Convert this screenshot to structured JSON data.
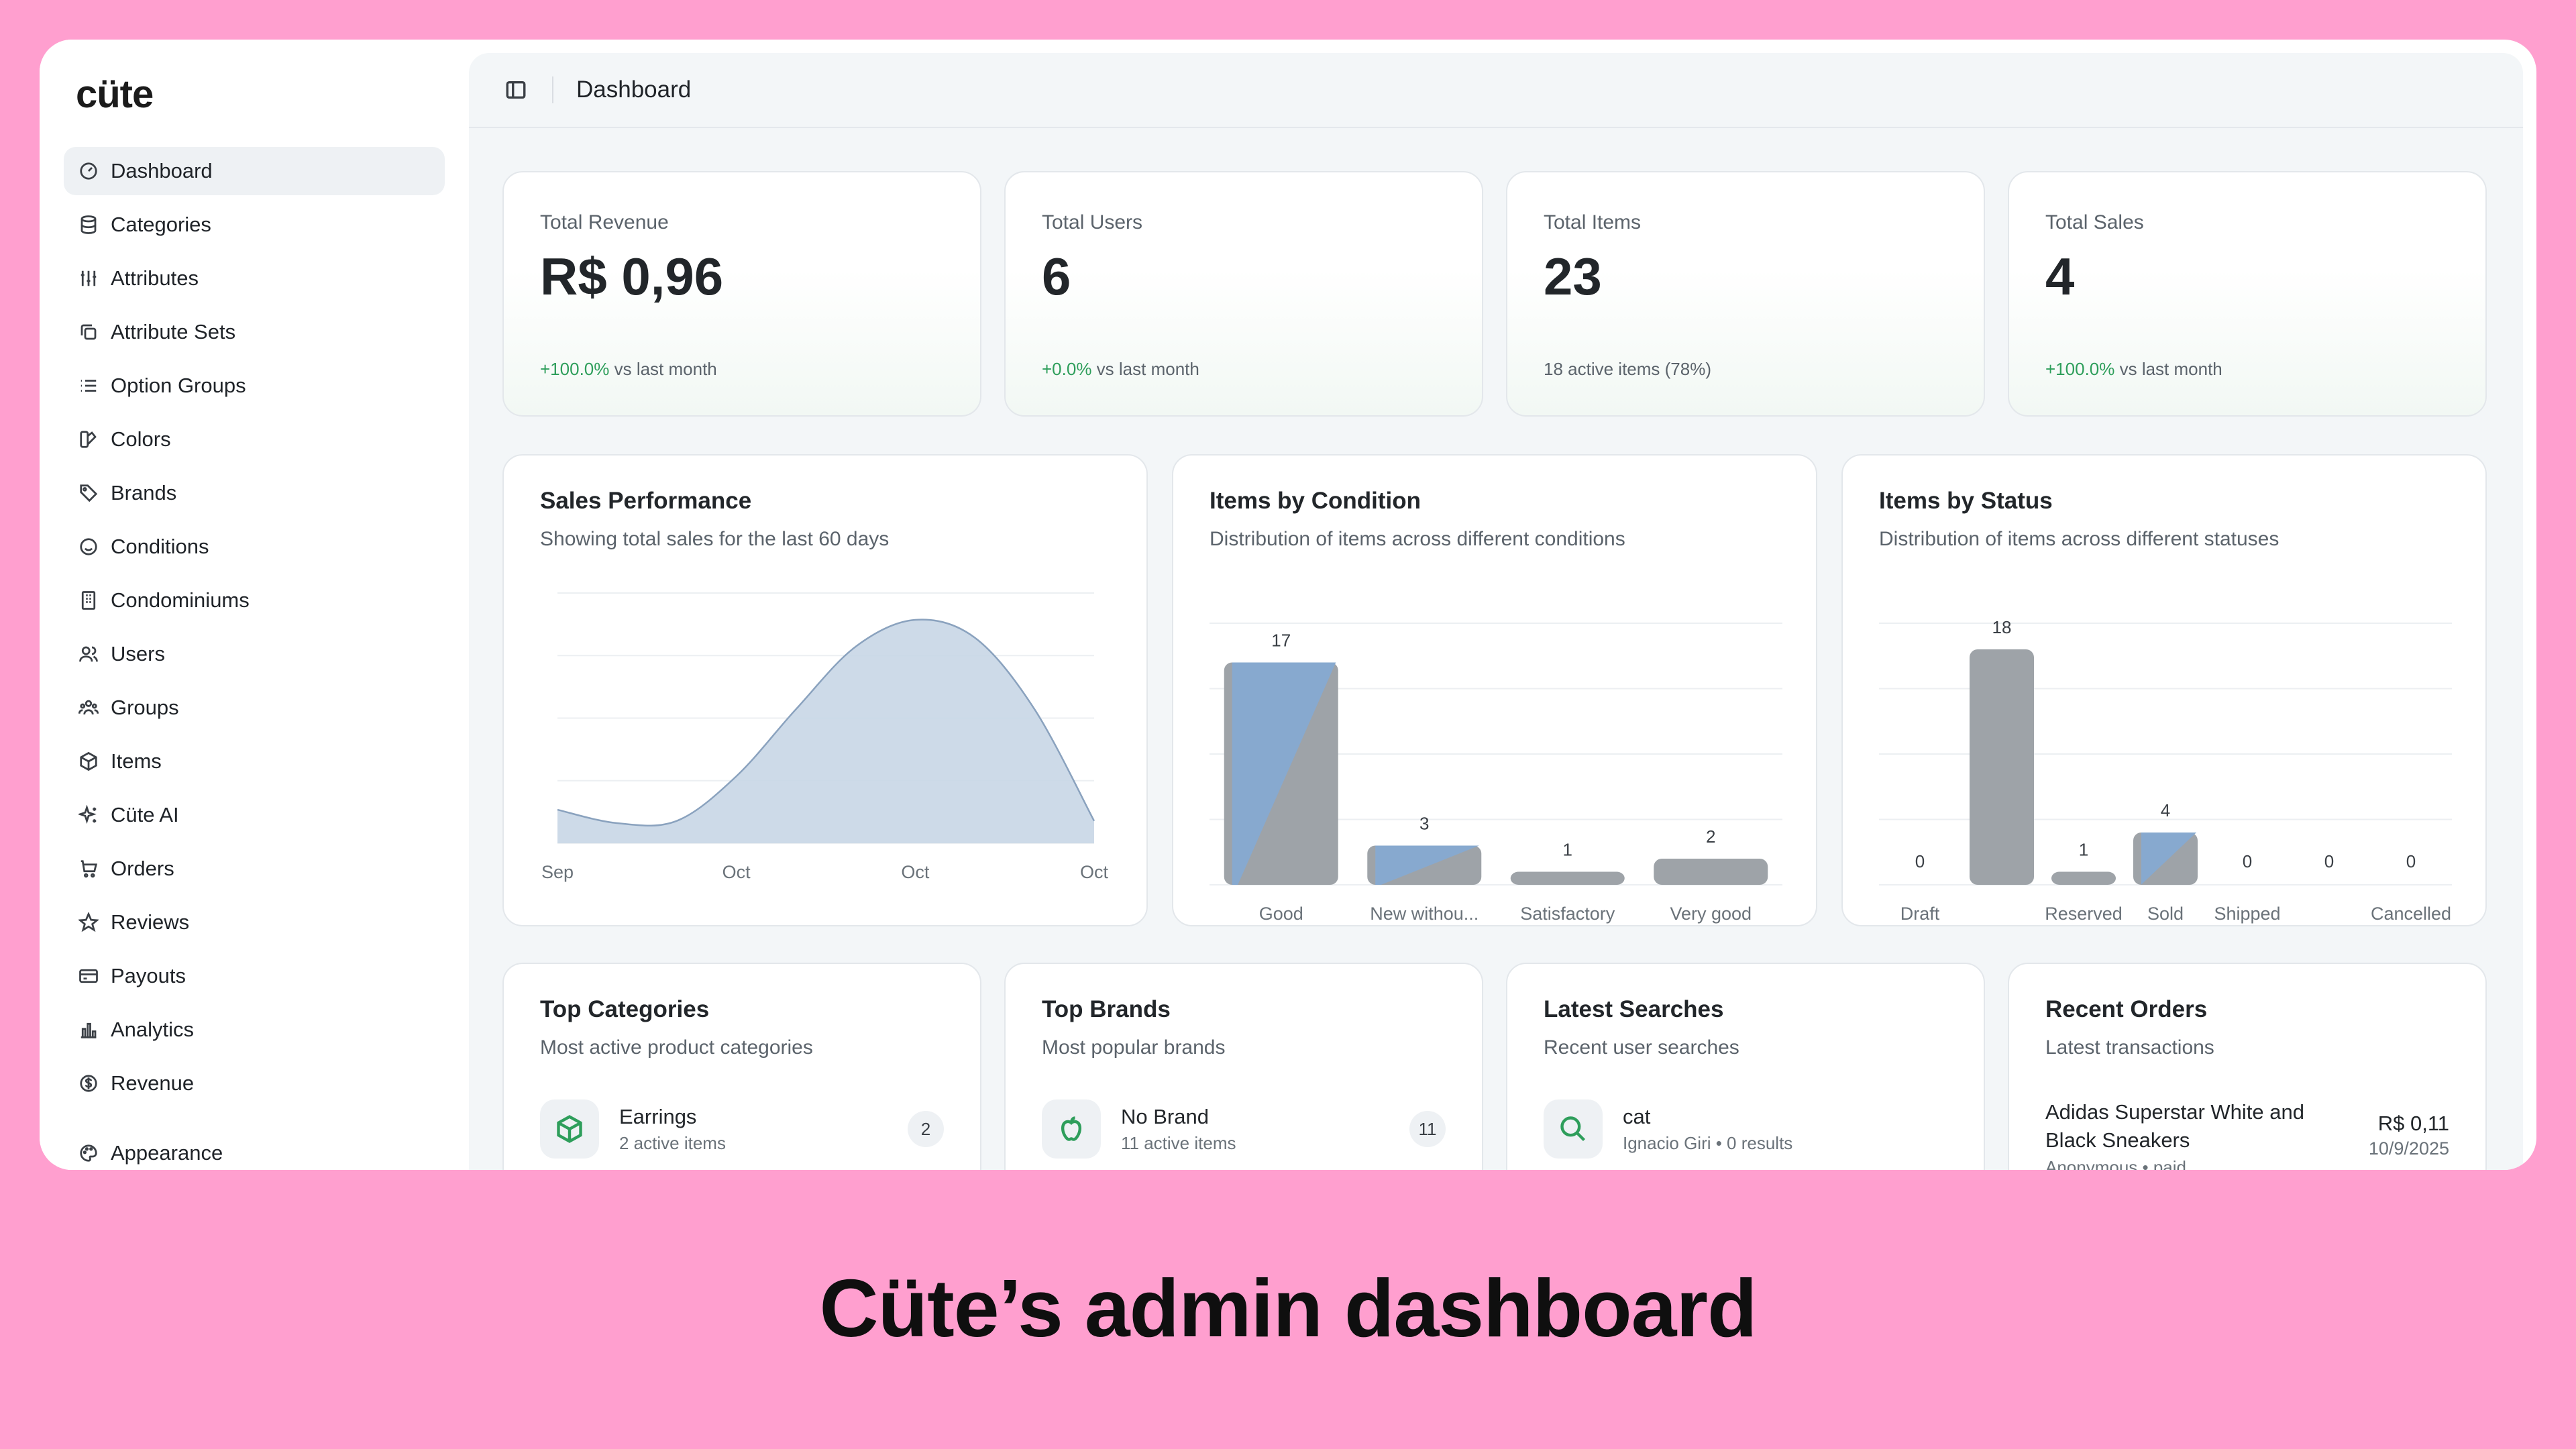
{
  "app": {
    "logo": "cüte",
    "page_title": "Dashboard"
  },
  "sidebar": {
    "items": [
      {
        "label": "Dashboard",
        "icon": "gauge-icon"
      },
      {
        "label": "Categories",
        "icon": "database-icon"
      },
      {
        "label": "Attributes",
        "icon": "sliders-icon"
      },
      {
        "label": "Attribute Sets",
        "icon": "copy-icon"
      },
      {
        "label": "Option Groups",
        "icon": "list-icon"
      },
      {
        "label": "Colors",
        "icon": "swatch-icon"
      },
      {
        "label": "Brands",
        "icon": "tag-icon"
      },
      {
        "label": "Conditions",
        "icon": "smile-icon"
      },
      {
        "label": "Condominiums",
        "icon": "building-icon"
      },
      {
        "label": "Users",
        "icon": "users-icon"
      },
      {
        "label": "Groups",
        "icon": "group-icon"
      },
      {
        "label": "Items",
        "icon": "package-icon"
      },
      {
        "label": "Cüte AI",
        "icon": "sparkles-icon"
      },
      {
        "label": "Orders",
        "icon": "cart-icon"
      },
      {
        "label": "Reviews",
        "icon": "star-icon"
      },
      {
        "label": "Payouts",
        "icon": "wallet-icon"
      },
      {
        "label": "Analytics",
        "icon": "bar-chart-icon"
      },
      {
        "label": "Revenue",
        "icon": "dollar-icon"
      },
      {
        "label": "Appearance",
        "icon": "palette-icon"
      }
    ]
  },
  "stats": [
    {
      "label": "Total Revenue",
      "value": "R$ 0,96",
      "delta": "+100.0%",
      "delta_suffix": " vs last month"
    },
    {
      "label": "Total Users",
      "value": "6",
      "delta": "+0.0%",
      "delta_suffix": " vs last month"
    },
    {
      "label": "Total Items",
      "value": "23",
      "delta": "",
      "delta_suffix": "18 active items (78%)"
    },
    {
      "label": "Total Sales",
      "value": "4",
      "delta": "+100.0%",
      "delta_suffix": " vs last month"
    }
  ],
  "sales_card": {
    "title": "Sales Performance",
    "subtitle": "Showing total sales for the last 60 days"
  },
  "condition_card": {
    "title": "Items by Condition",
    "subtitle": "Distribution of items across different conditions"
  },
  "status_card": {
    "title": "Items by Status",
    "subtitle": "Distribution of items across different statuses"
  },
  "chart_data": [
    {
      "type": "area",
      "title": "Sales Performance",
      "x": [
        "Sep",
        "Oct",
        "Oct",
        "Oct"
      ],
      "curve": [
        0.15,
        0.09,
        0.1,
        0.3,
        0.6,
        0.88,
        1.0,
        0.92,
        0.6,
        0.1
      ],
      "color": "#c8d6e6"
    },
    {
      "type": "bar",
      "title": "Items by Condition",
      "categories": [
        "Good",
        "New withou...",
        "Satisfactory",
        "Very good"
      ],
      "values": [
        17,
        3,
        1,
        2
      ],
      "ylim": [
        0,
        20
      ]
    },
    {
      "type": "bar",
      "title": "Items by Status",
      "categories": [
        "Draft",
        "",
        "Reserved",
        "Sold",
        "Shipped",
        "",
        "Cancelled"
      ],
      "values": [
        0,
        18,
        1,
        4,
        0,
        0,
        0
      ],
      "ylim": [
        0,
        20
      ]
    }
  ],
  "top_categories": {
    "title": "Top Categories",
    "subtitle": "Most active product categories",
    "name": "Earrings",
    "meta": "2 active items",
    "count": "2"
  },
  "top_brands": {
    "title": "Top Brands",
    "subtitle": "Most popular brands",
    "name": "No Brand",
    "meta": "11 active items",
    "count": "11"
  },
  "latest_searches": {
    "title": "Latest Searches",
    "subtitle": "Recent user searches",
    "name": "cat",
    "meta": "Ignacio Giri • 0 results"
  },
  "recent_orders": {
    "title": "Recent Orders",
    "subtitle": "Latest transactions",
    "name": "Adidas Superstar White and Black Sneakers",
    "meta": "Anonymous • paid",
    "amount": "R$ 0,11",
    "date": "10/9/2025"
  },
  "caption": "Cüte’s admin dashboard",
  "colors": {
    "accent": "#2e9e5b",
    "bar_blue": "#87a9cf",
    "bar_gray": "#9ea3a8",
    "background": "#ff9fcf"
  }
}
